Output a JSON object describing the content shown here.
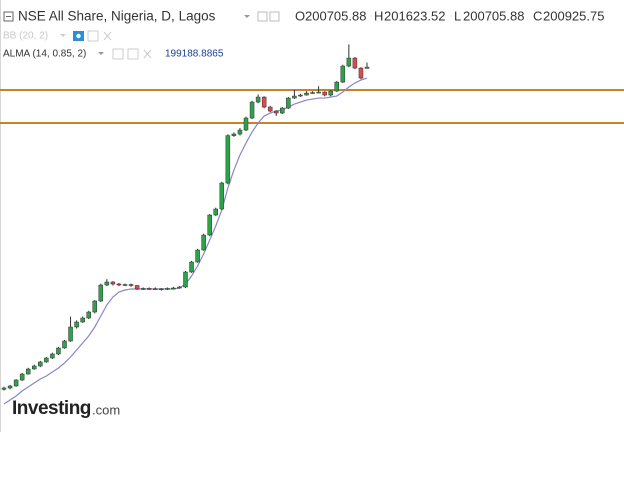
{
  "chart_data": {
    "type": "candlestick",
    "title": "NSE All Share, Nigeria, D, Lagos",
    "ohlc_labels": [
      "O",
      "H",
      "L",
      "C"
    ],
    "ylim": [
      143570,
      205200
    ],
    "candles": {
      "up_color": "#2ca24a",
      "down_color": "#e0484a",
      "open": [
        150000,
        150208,
        150524,
        151472,
        152420,
        153210,
        153684,
        154316,
        154948,
        155580,
        156528,
        157634,
        159846,
        160636,
        161268,
        162216,
        163954,
        166482,
        166956,
        166640,
        166482,
        166560,
        166400,
        165850,
        165950,
        165850,
        165900,
        165850,
        165950,
        166008,
        166166,
        168536,
        170116,
        172012,
        174382,
        177542,
        178490,
        182598,
        190086,
        190340,
        190972,
        192868,
        195396,
        196186,
        194606,
        193974,
        193658,
        194448,
        196028,
        196344,
        196502,
        196818,
        196900,
        196976,
        196502,
        197134,
        198556,
        201084,
        202348,
        200768,
        200705.88
      ],
      "high": [
        150400,
        150700,
        151600,
        152600,
        153400,
        153900,
        154500,
        155100,
        155800,
        156700,
        157800,
        161500,
        160900,
        161500,
        162400,
        164100,
        166700,
        167400,
        167100,
        166800,
        166700,
        166700,
        166500,
        166100,
        166100,
        166100,
        166000,
        166100,
        166200,
        166300,
        168700,
        170300,
        172200,
        174600,
        177700,
        178700,
        182800,
        190300,
        190600,
        191300,
        193100,
        195600,
        196600,
        196300,
        194800,
        194100,
        194600,
        196200,
        197300,
        196700,
        197100,
        197100,
        197900,
        197100,
        197300,
        198700,
        201300,
        204500,
        202500,
        200900,
        201623.52
      ],
      "low": [
        149800,
        150000,
        150400,
        151300,
        152300,
        153100,
        153500,
        154200,
        154800,
        155400,
        156400,
        157500,
        159600,
        160500,
        161100,
        162000,
        163800,
        166300,
        166400,
        166300,
        166300,
        166200,
        165700,
        165700,
        165700,
        165700,
        165600,
        165700,
        165800,
        165900,
        166000,
        168400,
        170000,
        171900,
        174200,
        177400,
        178300,
        182400,
        189900,
        190100,
        190800,
        192700,
        195200,
        194400,
        193800,
        193200,
        193500,
        194300,
        195900,
        196200,
        196400,
        196700,
        196800,
        196300,
        196300,
        197000,
        198400,
        200900,
        200600,
        199000,
        200705.88
      ],
      "close": [
        150208,
        150524,
        151472,
        152420,
        153210,
        153684,
        154316,
        154948,
        155580,
        156528,
        157634,
        159846,
        160636,
        161268,
        162216,
        163954,
        166482,
        166956,
        166640,
        166482,
        166560,
        166400,
        165850,
        165950,
        165850,
        165900,
        165850,
        165950,
        166008,
        166166,
        168536,
        170116,
        172012,
        174382,
        177542,
        178490,
        182598,
        190086,
        190340,
        190972,
        192868,
        195396,
        196186,
        194606,
        193974,
        193658,
        194448,
        196028,
        196344,
        196502,
        196818,
        196900,
        196976,
        196502,
        197134,
        198556,
        201084,
        202348,
        200768,
        199188,
        200925.75
      ]
    },
    "indicators": [
      {
        "name": "BB (20, 2)"
      },
      {
        "name": "ALMA (14, 0.85, 2)",
        "color": "#8a86c6",
        "values": [
          147680,
          148312,
          148944,
          149734,
          150366,
          150998,
          151630,
          152104,
          152736,
          153368,
          154158,
          155106,
          156212,
          157318,
          158424,
          159846,
          161584,
          163322,
          164586,
          165376,
          165692,
          165850,
          165850,
          165850,
          165850,
          165850,
          165850,
          165850,
          165850,
          166008,
          166640,
          167904,
          169484,
          171380,
          173592,
          175804,
          178332,
          181808,
          184652,
          187022,
          188916,
          190656,
          192078,
          193184,
          193658,
          193974,
          194132,
          194606,
          195080,
          195396,
          195712,
          195870,
          196028,
          196028,
          196186,
          196344,
          196976,
          197766,
          198398,
          198872,
          199188.8865
        ]
      }
    ],
    "hlines": {
      "color": "#c8812e",
      "values": [
        197290,
        192080
      ]
    },
    "watermark": [
      "Investing",
      ".com"
    ]
  }
}
